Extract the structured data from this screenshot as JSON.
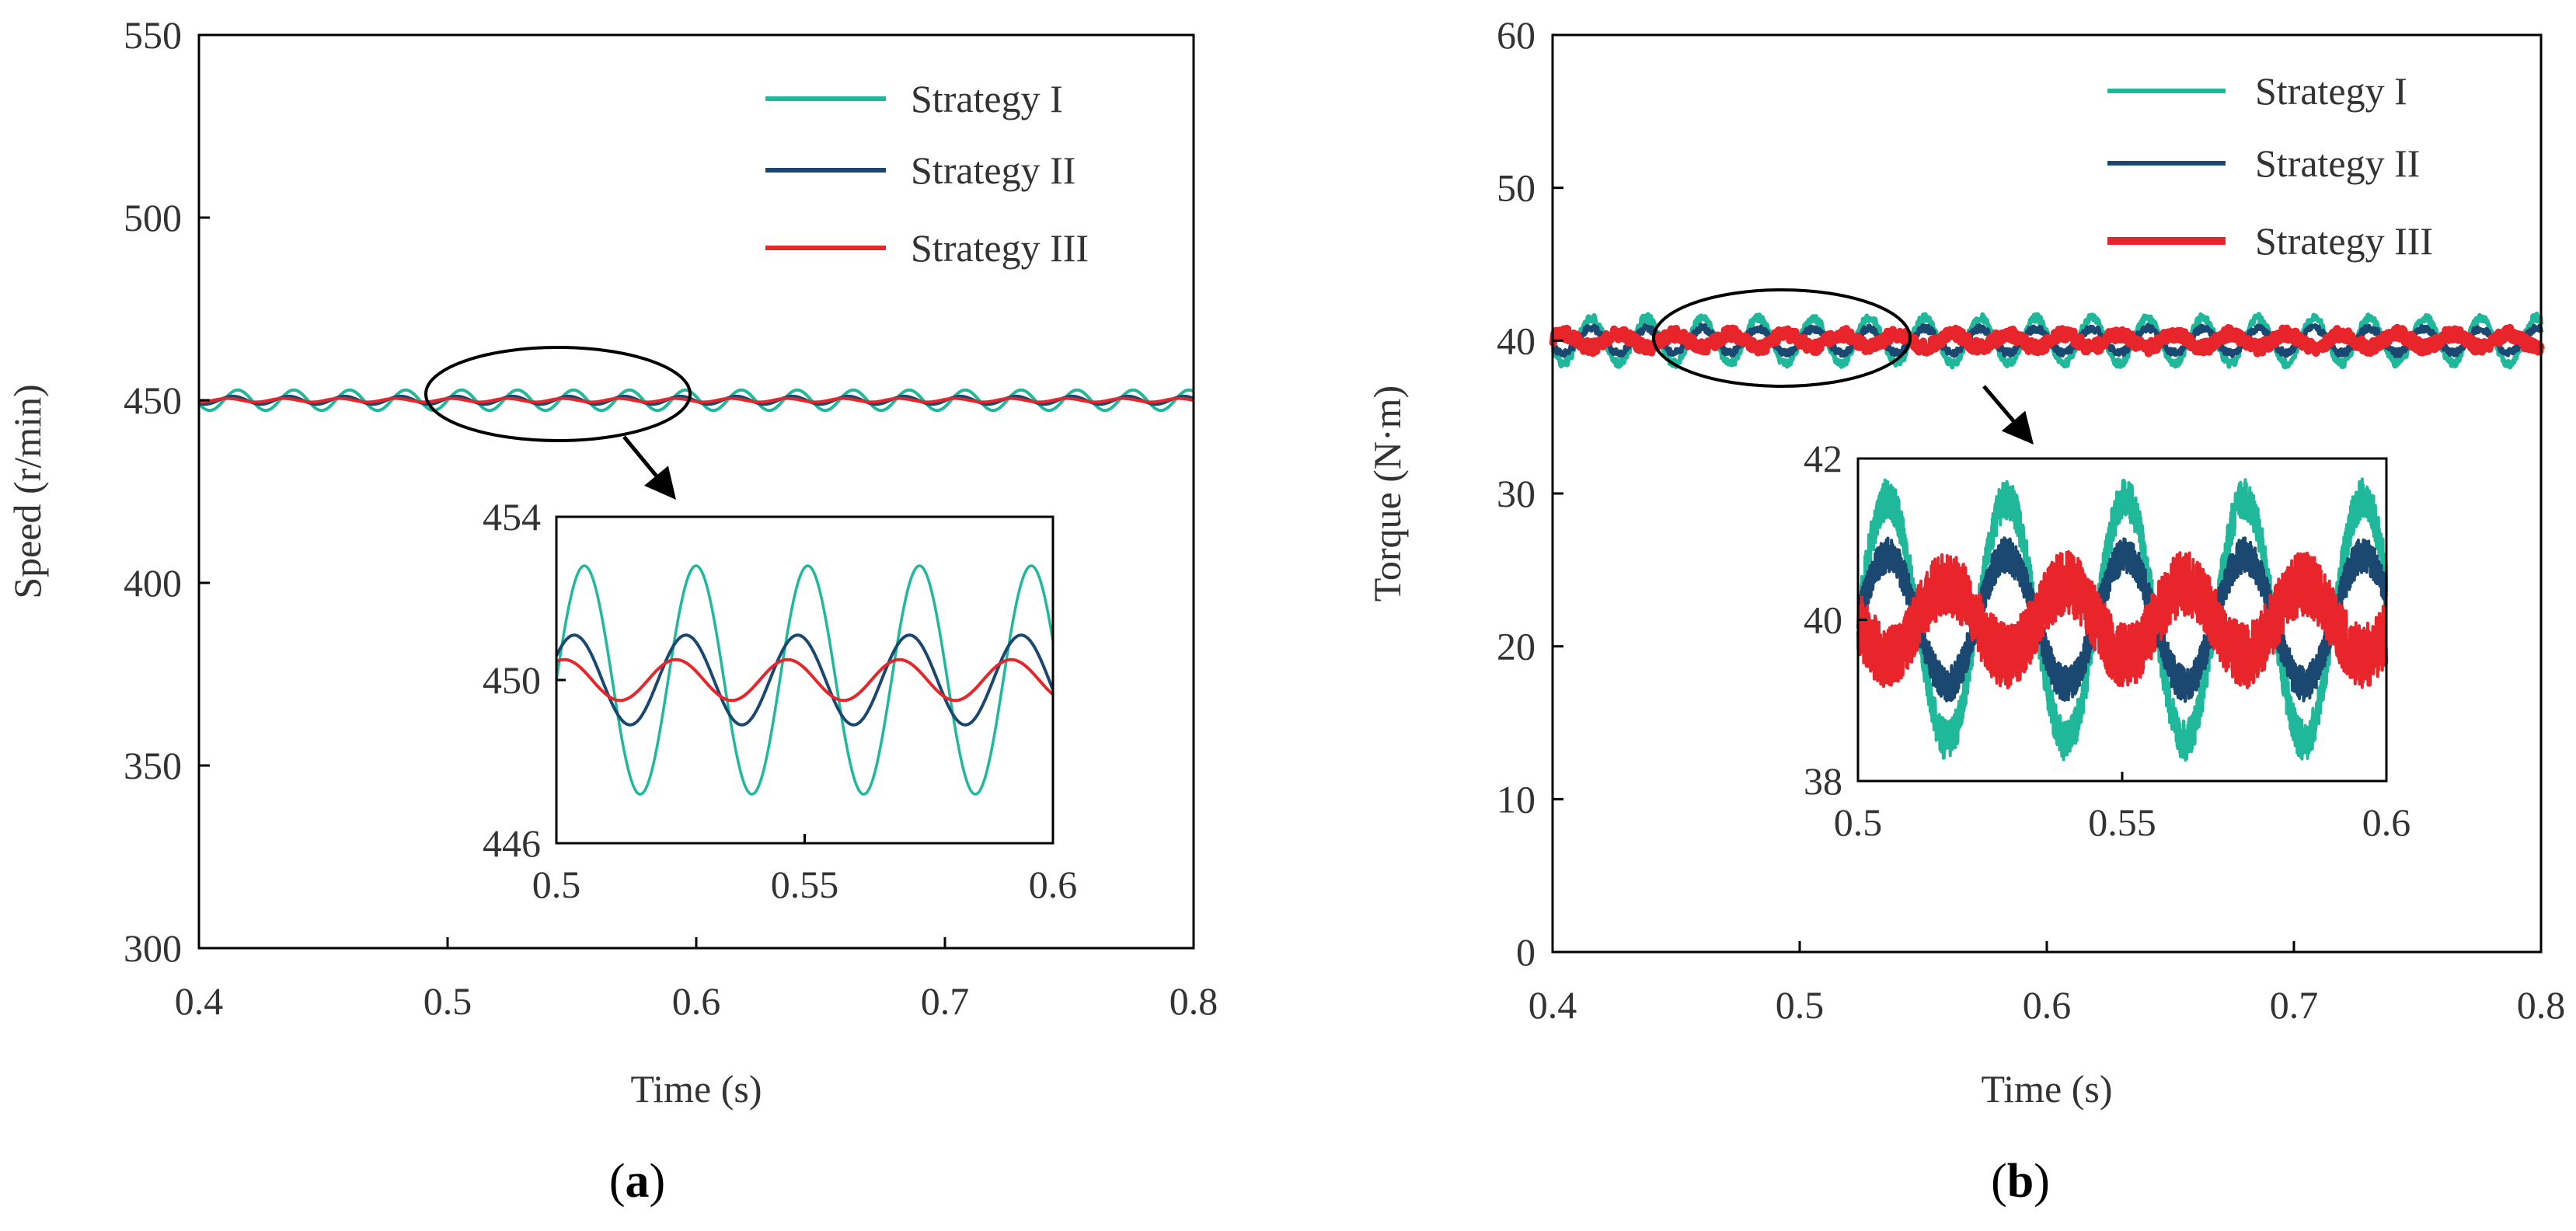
{
  "colors": {
    "strategy1": "#1fb89a",
    "strategy2": "#1b4870",
    "strategy3": "#e8252a",
    "axis": "#000000"
  },
  "chart_data": [
    {
      "panel_letter": "a",
      "type": "line",
      "xlabel": "Time (s)",
      "ylabel": "Speed (r/min)",
      "xlim": [
        0.4,
        0.8
      ],
      "ylim": [
        300,
        550
      ],
      "x_ticks": [
        "0.4",
        "0.5",
        "0.6",
        "0.7",
        "0.8"
      ],
      "y_ticks": [
        "300",
        "350",
        "400",
        "450",
        "500",
        "550"
      ],
      "legend": [
        "Strategy I",
        "Strategy II",
        "Strategy III"
      ],
      "series": [
        {
          "name": "Strategy I",
          "mean": 450,
          "amplitude": 2.8,
          "period": 0.0225,
          "phase": 0.0,
          "noise": 0
        },
        {
          "name": "Strategy II",
          "mean": 450,
          "amplitude": 1.1,
          "period": 0.0225,
          "phase": 0.09,
          "noise": 0
        },
        {
          "name": "Strategy III",
          "mean": 450,
          "amplitude": 0.5,
          "period": 0.0225,
          "phase": 0.18,
          "noise": 0
        }
      ],
      "inset": {
        "xlim": [
          0.5,
          0.6
        ],
        "ylim": [
          446,
          454
        ],
        "x_ticks": [
          "0.5",
          "0.55",
          "0.6"
        ],
        "y_ticks": [
          "446",
          "450",
          "454"
        ]
      },
      "zoom_ellipse_x": [
        0.498,
        0.6
      ]
    },
    {
      "panel_letter": "b",
      "type": "line",
      "xlabel": "Time (s)",
      "ylabel": "Torque (N·m)",
      "xlim": [
        0.4,
        0.8
      ],
      "ylim": [
        0,
        60
      ],
      "x_ticks": [
        "0.4",
        "0.5",
        "0.6",
        "0.7",
        "0.8"
      ],
      "y_ticks": [
        "0",
        "10",
        "20",
        "30",
        "40",
        "50",
        "60"
      ],
      "legend": [
        "Strategy I",
        "Strategy II",
        "Strategy III"
      ],
      "series": [
        {
          "name": "Strategy I",
          "mean": 40,
          "amplitude": 1.5,
          "period": 0.0225,
          "phase": 0.0,
          "noise": 0.25
        },
        {
          "name": "Strategy II",
          "mean": 40,
          "amplitude": 0.8,
          "period": 0.0225,
          "phase": 0.0,
          "noise": 0.22
        },
        {
          "name": "Strategy III",
          "mean": 40,
          "amplitude": 0.45,
          "period": 0.0225,
          "phase": 0.5,
          "noise": 0.4
        }
      ],
      "inset": {
        "xlim": [
          0.5,
          0.6
        ],
        "ylim": [
          38,
          42
        ],
        "x_ticks": [
          "0.5",
          "0.55",
          "0.6"
        ],
        "y_ticks": [
          "38",
          "40",
          "42"
        ]
      },
      "zoom_ellipse_x": [
        0.5,
        0.6
      ]
    }
  ]
}
